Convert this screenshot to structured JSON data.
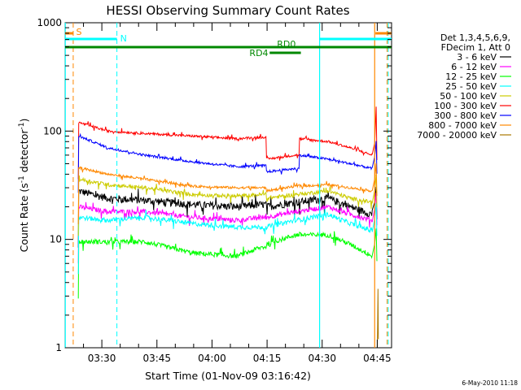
{
  "chart_data": {
    "type": "line",
    "title": "HESSI Observing Summary Count Rates",
    "xlabel": "Start Time (01-Nov-09 03:16:42)",
    "ylabel_main": "Count Rate (s",
    "ylabel_sup1": "-1",
    "ylabel_mid": " detector",
    "ylabel_sup2": "-1",
    "ylabel_end": ")",
    "yscale": "log",
    "ylim": [
      1,
      1000
    ],
    "xlim_minutes": [
      3.3,
      92.2
    ],
    "x_ticks": [
      {
        "label": "03:30",
        "min": 13.3
      },
      {
        "label": "03:45",
        "min": 28.3
      },
      {
        "label": "04:00",
        "min": 43.3
      },
      {
        "label": "04:15",
        "min": 58.3
      },
      {
        "label": "04:30",
        "min": 73.3
      },
      {
        "label": "04:45",
        "min": 88.3
      }
    ],
    "y_ticks": [
      {
        "label": "1",
        "value": 1
      },
      {
        "label": "10",
        "value": 10
      },
      {
        "label": "100",
        "value": 100
      },
      {
        "label": "1000",
        "value": 1000
      }
    ],
    "legend": {
      "header": [
        "Det 1,3,4,5,6,9,",
        "FDecim 1, Att 0"
      ],
      "placement": "right"
    },
    "series": [
      {
        "name": "3 - 6 keV",
        "color": "#000000",
        "base": 28,
        "curve": [
          [
            7,
            28
          ],
          [
            15,
            24
          ],
          [
            25,
            23
          ],
          [
            38,
            21
          ],
          [
            50,
            20
          ],
          [
            57,
            21
          ],
          [
            58,
            20
          ],
          [
            66,
            22
          ],
          [
            75,
            24
          ],
          [
            81,
            20
          ],
          [
            87,
            17
          ]
        ],
        "noise": 0.08,
        "freq": 0.5
      },
      {
        "name": "6 - 12 keV",
        "color": "#ff00ff",
        "base": 19,
        "curve": [
          [
            7,
            20
          ],
          [
            15,
            18
          ],
          [
            25,
            18
          ],
          [
            38,
            16
          ],
          [
            50,
            15
          ],
          [
            57,
            16
          ],
          [
            58,
            16
          ],
          [
            66,
            18
          ],
          [
            75,
            20
          ],
          [
            81,
            17
          ],
          [
            87,
            15
          ]
        ],
        "noise": 0.05,
        "freq": 0.5
      },
      {
        "name": "12 - 25 keV",
        "color": "#00ff00",
        "base": 10,
        "curve": [
          [
            7,
            9.5
          ],
          [
            15,
            9.5
          ],
          [
            25,
            9.5
          ],
          [
            38,
            7.5
          ],
          [
            50,
            7
          ],
          [
            57,
            8.5
          ],
          [
            58,
            9
          ],
          [
            66,
            11
          ],
          [
            75,
            11
          ],
          [
            81,
            9
          ],
          [
            87,
            7
          ]
        ],
        "noise": 0.05,
        "freq": 0.5
      },
      {
        "name": "25 - 50 keV",
        "color": "#00ffff",
        "base": 16,
        "curve": [
          [
            7,
            16
          ],
          [
            15,
            15
          ],
          [
            25,
            16
          ],
          [
            38,
            14
          ],
          [
            50,
            13
          ],
          [
            57,
            13
          ],
          [
            58,
            13
          ],
          [
            66,
            15
          ],
          [
            75,
            17
          ],
          [
            81,
            14
          ],
          [
            87,
            12
          ]
        ],
        "noise": 0.05,
        "freq": 0.5
      },
      {
        "name": "50 - 100 keV",
        "color": "#cccc00",
        "base": 34,
        "curve": [
          [
            7,
            36
          ],
          [
            15,
            32
          ],
          [
            25,
            30
          ],
          [
            38,
            26
          ],
          [
            50,
            25
          ],
          [
            57,
            26
          ],
          [
            58,
            24
          ],
          [
            66,
            26
          ],
          [
            75,
            28
          ],
          [
            81,
            24
          ],
          [
            87,
            22
          ]
        ],
        "noise": 0.04,
        "freq": 0.5
      },
      {
        "name": "100 - 300 keV",
        "color": "#ff0000",
        "base": 110,
        "curve": [
          [
            7,
            120
          ],
          [
            15,
            100
          ],
          [
            25,
            95
          ],
          [
            38,
            90
          ],
          [
            50,
            85
          ],
          [
            57,
            88
          ],
          [
            58,
            55
          ],
          [
            66,
            60
          ],
          [
            67,
            85
          ],
          [
            75,
            80
          ],
          [
            81,
            70
          ],
          [
            87,
            60
          ]
        ],
        "noise": 0.025,
        "freq": 0.5
      },
      {
        "name": "300 - 800 keV",
        "color": "#0000ff",
        "base": 90,
        "curve": [
          [
            7,
            90
          ],
          [
            15,
            70
          ],
          [
            25,
            60
          ],
          [
            38,
            52
          ],
          [
            50,
            47
          ],
          [
            57,
            48
          ],
          [
            58,
            42
          ],
          [
            66,
            45
          ],
          [
            67,
            60
          ],
          [
            75,
            55
          ],
          [
            81,
            50
          ],
          [
            87,
            45
          ]
        ],
        "noise": 0.025,
        "freq": 0.5
      },
      {
        "name": "800 - 7000 keV",
        "color": "#ff8800",
        "base": 45,
        "curve": [
          [
            7,
            46
          ],
          [
            15,
            40
          ],
          [
            25,
            36
          ],
          [
            38,
            31
          ],
          [
            50,
            30
          ],
          [
            57,
            30
          ],
          [
            58,
            28
          ],
          [
            66,
            31
          ],
          [
            75,
            32
          ],
          [
            81,
            30
          ],
          [
            87,
            28
          ]
        ],
        "noise": 0.025,
        "freq": 0.5
      },
      {
        "name": "7000 - 20000 keV",
        "color": "#aa7700",
        "base": 1,
        "curve": [
          [
            87,
            1
          ],
          [
            88,
            1
          ]
        ],
        "noise": 0.0,
        "freq": 0.5
      }
    ],
    "flags": [
      {
        "label": "S",
        "color": "#ff8800"
      },
      {
        "label": "N",
        "color": "#00ffff"
      },
      {
        "label": "RD4",
        "color": "#008800"
      },
      {
        "label": "RD0",
        "color": "#008800"
      }
    ]
  },
  "timestamp": "6-May-2010 11:18"
}
